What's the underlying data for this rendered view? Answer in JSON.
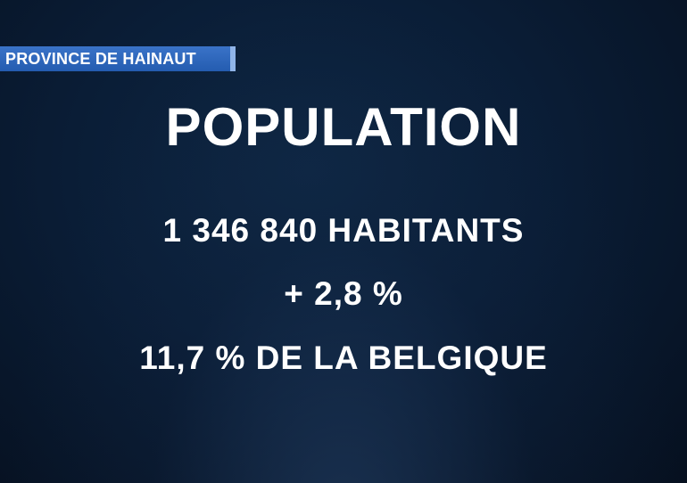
{
  "header": {
    "tag": "PROVINCE DE HAINAUT",
    "title": "POPULATION"
  },
  "lines": [
    "1 346 840 HABITANTS",
    "+ 2,8 %",
    "11,7 % DE LA BELGIQUE"
  ]
}
